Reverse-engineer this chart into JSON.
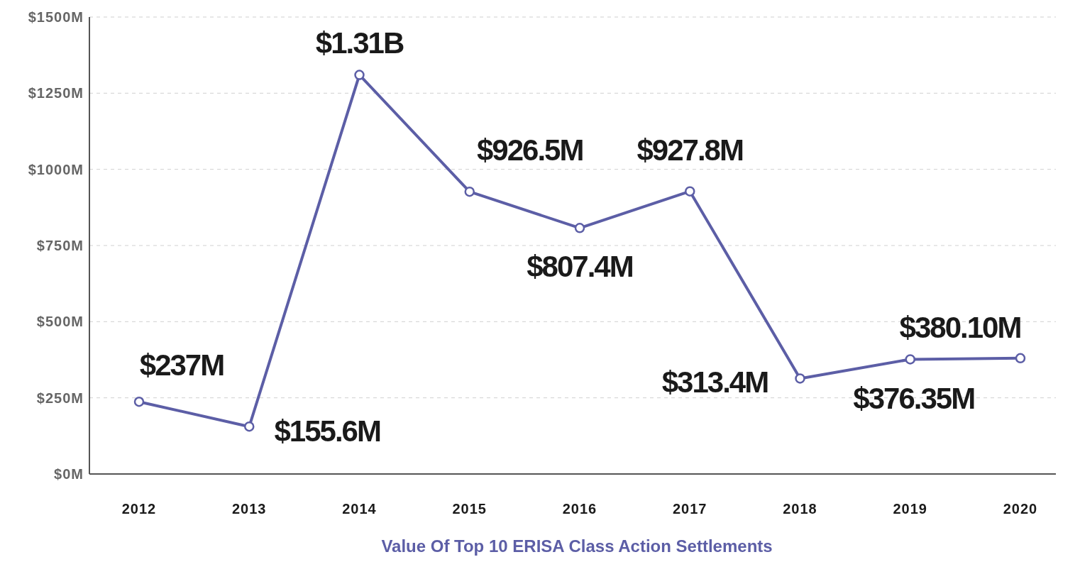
{
  "chart_data": {
    "type": "line",
    "title": "Value Of Top 10 ERISA Class Action Settlements",
    "categories": [
      "2012",
      "2013",
      "2014",
      "2015",
      "2016",
      "2017",
      "2018",
      "2019",
      "2020"
    ],
    "series": [
      {
        "color": "#5c5ea6",
        "values": [
          237,
          155.6,
          1310,
          926.5,
          807.4,
          927.8,
          313.4,
          376.35,
          380.1
        ],
        "value_labels": [
          "$237M",
          "$155.6M",
          null,
          "$926.5M",
          "$807.4M",
          "$927.8M",
          "$313.4M",
          "$376.35M",
          "$380.10M"
        ]
      }
    ],
    "ylim": [
      0,
      1500
    ],
    "yticks": [
      {
        "value": 0,
        "label": "$0M"
      },
      {
        "value": 250,
        "label": "$250M"
      },
      {
        "value": 500,
        "label": "$500M"
      },
      {
        "value": 750,
        "label": "$750M"
      },
      {
        "value": 1000,
        "label": "$1000M"
      },
      {
        "value": 1250,
        "label": "$1250M"
      },
      {
        "value": 1500,
        "label": "$1500M"
      }
    ],
    "annotations": [
      {
        "text": "$1.31B",
        "x": "2014",
        "y": 1310
      }
    ],
    "grid": "y",
    "legend": false,
    "marker": "circle",
    "line_style": "solid"
  }
}
